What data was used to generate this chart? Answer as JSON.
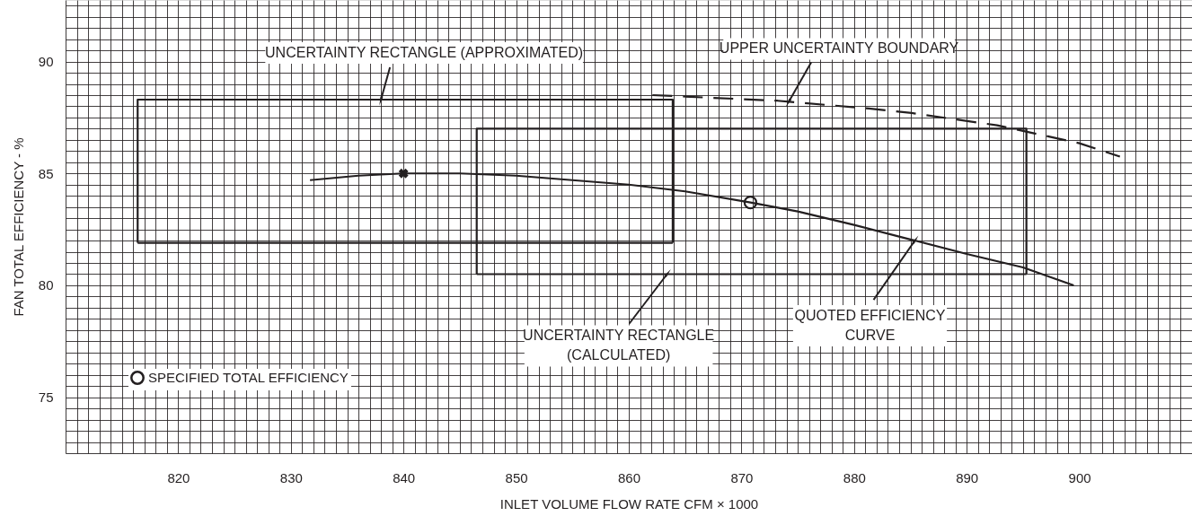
{
  "chart_data": {
    "type": "line",
    "xlabel": "INLET VOLUME FLOW RATE CFM × 1000",
    "ylabel": "FAN TOTAL EFFICIENCY - %",
    "xlim": [
      810,
      910
    ],
    "ylim": [
      72.5,
      92.75
    ],
    "xticks": [
      {
        "value": 810,
        "label": null
      },
      {
        "value": 811,
        "label": null
      },
      {
        "value": 812,
        "label": null
      },
      {
        "value": 813,
        "label": null
      },
      {
        "value": 814,
        "label": null
      },
      {
        "value": 815,
        "label": null
      },
      {
        "value": 816,
        "label": null
      },
      {
        "value": 817,
        "label": null
      },
      {
        "value": 818,
        "label": null
      },
      {
        "value": 819,
        "label": null
      },
      820,
      {
        "value": 821,
        "label": null
      },
      {
        "value": 822,
        "label": null
      },
      {
        "value": 823,
        "label": null
      },
      {
        "value": 824,
        "label": null
      },
      {
        "value": 825,
        "label": null
      },
      {
        "value": 826,
        "label": null
      },
      {
        "value": 827,
        "label": null
      },
      {
        "value": 828,
        "label": null
      },
      {
        "value": 829,
        "label": null
      },
      830,
      {
        "value": 831,
        "label": null
      },
      {
        "value": 832,
        "label": null
      },
      {
        "value": 833,
        "label": null
      },
      {
        "value": 834,
        "label": null
      },
      {
        "value": 835,
        "label": null
      },
      {
        "value": 836,
        "label": null
      },
      {
        "value": 837,
        "label": null
      },
      {
        "value": 838,
        "label": null
      },
      {
        "value": 839,
        "label": null
      },
      840,
      {
        "value": 841,
        "label": null
      },
      {
        "value": 842,
        "label": null
      },
      {
        "value": 843,
        "label": null
      },
      {
        "value": 844,
        "label": null
      },
      {
        "value": 845,
        "label": null
      },
      {
        "value": 846,
        "label": null
      },
      {
        "value": 847,
        "label": null
      },
      {
        "value": 848,
        "label": null
      },
      {
        "value": 849,
        "label": null
      },
      850,
      {
        "value": 851,
        "label": null
      },
      {
        "value": 852,
        "label": null
      },
      {
        "value": 853,
        "label": null
      },
      {
        "value": 854,
        "label": null
      },
      {
        "value": 855,
        "label": null
      },
      {
        "value": 856,
        "label": null
      },
      {
        "value": 857,
        "label": null
      },
      {
        "value": 858,
        "label": null
      },
      {
        "value": 859,
        "label": null
      },
      860,
      {
        "value": 861,
        "label": null
      },
      {
        "value": 862,
        "label": null
      },
      {
        "value": 863,
        "label": null
      },
      {
        "value": 864,
        "label": null
      },
      {
        "value": 865,
        "label": null
      },
      {
        "value": 866,
        "label": null
      },
      {
        "value": 867,
        "label": null
      },
      {
        "value": 868,
        "label": null
      },
      {
        "value": 869,
        "label": null
      },
      870,
      {
        "value": 871,
        "label": null
      },
      {
        "value": 872,
        "label": null
      },
      {
        "value": 873,
        "label": null
      },
      {
        "value": 874,
        "label": null
      },
      {
        "value": 875,
        "label": null
      },
      {
        "value": 876,
        "label": null
      },
      {
        "value": 877,
        "label": null
      },
      {
        "value": 878,
        "label": null
      },
      {
        "value": 879,
        "label": null
      },
      880,
      {
        "value": 881,
        "label": null
      },
      {
        "value": 882,
        "label": null
      },
      {
        "value": 883,
        "label": null
      },
      {
        "value": 884,
        "label": null
      },
      {
        "value": 885,
        "label": null
      },
      {
        "value": 886,
        "label": null
      },
      {
        "value": 887,
        "label": null
      },
      {
        "value": 888,
        "label": null
      },
      {
        "value": 889,
        "label": null
      },
      890,
      {
        "value": 891,
        "label": null
      },
      {
        "value": 892,
        "label": null
      },
      {
        "value": 893,
        "label": null
      },
      {
        "value": 894,
        "label": null
      },
      {
        "value": 895,
        "label": null
      },
      {
        "value": 896,
        "label": null
      },
      {
        "value": 897,
        "label": null
      },
      {
        "value": 898,
        "label": null
      },
      {
        "value": 899,
        "label": null
      },
      900,
      {
        "value": 901,
        "label": null
      },
      {
        "value": 902,
        "label": null
      },
      {
        "value": 903,
        "label": null
      },
      {
        "value": 904,
        "label": null
      },
      {
        "value": 905,
        "label": null
      },
      {
        "value": 906,
        "label": null
      },
      {
        "value": 907,
        "label": null
      },
      {
        "value": 908,
        "label": null
      },
      {
        "value": 909,
        "label": null
      },
      {
        "value": 910,
        "label": null
      }
    ],
    "yticks": [
      {
        "value": 72.5,
        "label": null
      },
      {
        "value": 73,
        "label": null
      },
      {
        "value": 73.5,
        "label": null
      },
      {
        "value": 74,
        "label": null
      },
      {
        "value": 74.5,
        "label": null
      },
      75,
      {
        "value": 75.5,
        "label": null
      },
      {
        "value": 76,
        "label": null
      },
      {
        "value": 76.5,
        "label": null
      },
      {
        "value": 77,
        "label": null
      },
      {
        "value": 77.5,
        "label": null
      },
      {
        "value": 78,
        "label": null
      },
      {
        "value": 78.5,
        "label": null
      },
      {
        "value": 79,
        "label": null
      },
      {
        "value": 79.5,
        "label": null
      },
      80,
      {
        "value": 80.5,
        "label": null
      },
      {
        "value": 81,
        "label": null
      },
      {
        "value": 81.5,
        "label": null
      },
      {
        "value": 82,
        "label": null
      },
      {
        "value": 82.5,
        "label": null
      },
      {
        "value": 83,
        "label": null
      },
      {
        "value": 83.5,
        "label": null
      },
      {
        "value": 84,
        "label": null
      },
      {
        "value": 84.5,
        "label": null
      },
      85,
      {
        "value": 85.5,
        "label": null
      },
      {
        "value": 86,
        "label": null
      },
      {
        "value": 86.5,
        "label": null
      },
      {
        "value": 87,
        "label": null
      },
      {
        "value": 87.5,
        "label": null
      },
      {
        "value": 88,
        "label": null
      },
      {
        "value": 88.5,
        "label": null
      },
      {
        "value": 89,
        "label": null
      },
      {
        "value": 89.5,
        "label": null
      },
      90,
      {
        "value": 90.5,
        "label": null
      },
      {
        "value": 91,
        "label": null
      },
      {
        "value": 91.5,
        "label": null
      },
      {
        "value": 92,
        "label": null
      },
      {
        "value": 92.5,
        "label": null
      }
    ],
    "grid": true,
    "legend": "bottom left",
    "series": [
      {
        "color": "#231f20",
        "x": [
          831.7,
          836,
          840,
          845,
          850,
          855,
          860,
          865,
          870.8,
          875,
          880,
          885,
          890,
          895,
          899.5
        ],
        "values": [
          84.7,
          84.9,
          85.0,
          85.0,
          84.9,
          84.7,
          84.5,
          84.2,
          83.7,
          83.3,
          82.7,
          82.05,
          81.4,
          80.8,
          80.0
        ]
      },
      {
        "color": "#231f20",
        "line_style": "dashed",
        "x": [
          862.1,
          873.2,
          881.3,
          885.1,
          892.7,
          900,
          903.6
        ],
        "values": [
          88.5,
          88.25,
          87.9,
          87.7,
          87.15,
          86.35,
          85.75
        ]
      },
      {
        "color": "#231f20",
        "x": [
          816.4,
          816.4,
          863.9,
          863.9
        ],
        "values": [
          81.9,
          88.3,
          88.3,
          81.9
        ]
      },
      {
        "color": "#231f20",
        "x": [
          816.4,
          863.9
        ],
        "values": [
          81.9,
          81.9
        ]
      },
      {
        "color": "#231f20",
        "x": [
          846.5,
          846.5,
          895.3,
          895.3
        ],
        "values": [
          80.5,
          87.0,
          87.0,
          80.5
        ]
      },
      {
        "color": "#231f20",
        "x": [
          846.5,
          895.3
        ],
        "values": [
          80.5,
          80.5
        ]
      },
      {
        "type": "scatter",
        "color": "#231f20",
        "marker": "cross",
        "x": [
          840
        ],
        "values": [
          85.0
        ]
      },
      {
        "type": "scatter",
        "name": "SPECIFIED TOTAL EFFICIENCY",
        "color": "#231f20",
        "marker": "circle",
        "x": [
          870.8
        ],
        "values": [
          83.7
        ]
      }
    ],
    "annotations": [
      {
        "text": "UNCERTAINTY RECTANGLE (APPROXIMATED)",
        "x": 838,
        "y": 88.3
      },
      {
        "text": "UPPER UNCERTAINTY BOUNDARY",
        "x": 874.2,
        "y": 88.2
      },
      {
        "text": "UNCERTAINTY RECTANGLE\n(CALCULATED)",
        "x": 863.4,
        "y": 80.5
      },
      {
        "text": "QUOTED EFFICIENCY\nCURVE",
        "x": 885.4,
        "y": 82.0
      }
    ]
  }
}
